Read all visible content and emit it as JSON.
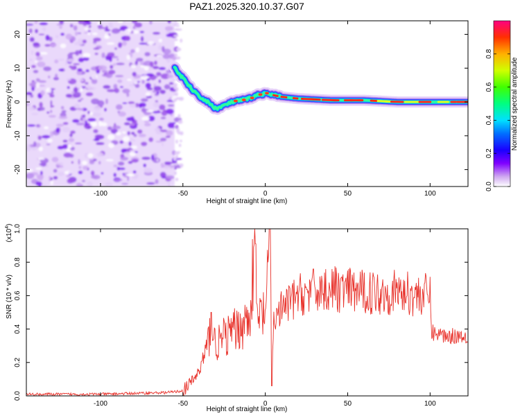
{
  "title": "PAZ1.2025.320.10.37.G07",
  "chart_data": [
    {
      "type": "heatmap",
      "name": "spectrogram",
      "xlabel": "Height of straight line (km)",
      "ylabel": "Frequency (Hz)",
      "xlim": [
        -145,
        123
      ],
      "ylim": [
        -25,
        24
      ],
      "xticks": [
        -100,
        -50,
        0,
        50,
        100
      ],
      "yticks": [
        -20,
        -10,
        0,
        10,
        20
      ],
      "colorbar": {
        "label": "Normalized spectral amplitude",
        "range": [
          0,
          1
        ],
        "ticks": [
          0.0,
          0.2,
          0.4,
          0.6,
          0.8
        ]
      },
      "signal_track": {
        "x": [
          -55,
          -50,
          -45,
          -40,
          -35,
          -30,
          -25,
          -20,
          -15,
          -10,
          -5,
          0,
          5,
          10,
          20,
          40,
          60,
          80,
          100,
          123
        ],
        "y": [
          10,
          7,
          4,
          1.5,
          0,
          -2,
          -1,
          0,
          0.5,
          1,
          2,
          2.5,
          2,
          1.5,
          1,
          0.5,
          0.5,
          0,
          0,
          0
        ]
      },
      "noise_region_x": [
        -145,
        -55
      ]
    },
    {
      "type": "line",
      "name": "snr",
      "xlabel": "Height of straight line (km)",
      "ylabel": "SNR (10 * v/v)",
      "y_multiplier": "(x10",
      "y_multiplier_exp": "4",
      "y_multiplier_close": ")",
      "xlim": [
        -145,
        123
      ],
      "ylim": [
        0,
        1
      ],
      "xticks": [
        -100,
        -50,
        0,
        50,
        100
      ],
      "yticks": [
        0.0,
        0.2,
        0.4,
        0.6,
        0.8,
        1.0
      ],
      "series": [
        {
          "name": "SNR",
          "color": "#e8312a",
          "x": [
            -145,
            -100,
            -60,
            -50,
            -45,
            -40,
            -35,
            -33,
            -30,
            -25,
            -20,
            -15,
            -10,
            -6,
            -5,
            -2,
            0,
            3,
            4,
            5,
            10,
            15,
            20,
            30,
            40,
            50,
            60,
            70,
            80,
            90,
            100,
            101,
            110,
            123
          ],
          "y": [
            0.01,
            0.01,
            0.02,
            0.03,
            0.08,
            0.15,
            0.3,
            0.42,
            0.3,
            0.35,
            0.38,
            0.42,
            0.45,
            0.9,
            0.45,
            0.48,
            0.5,
            1.0,
            0.06,
            0.45,
            0.52,
            0.56,
            0.6,
            0.63,
            0.64,
            0.63,
            0.62,
            0.62,
            0.62,
            0.61,
            0.6,
            0.38,
            0.36,
            0.36
          ]
        }
      ]
    }
  ]
}
